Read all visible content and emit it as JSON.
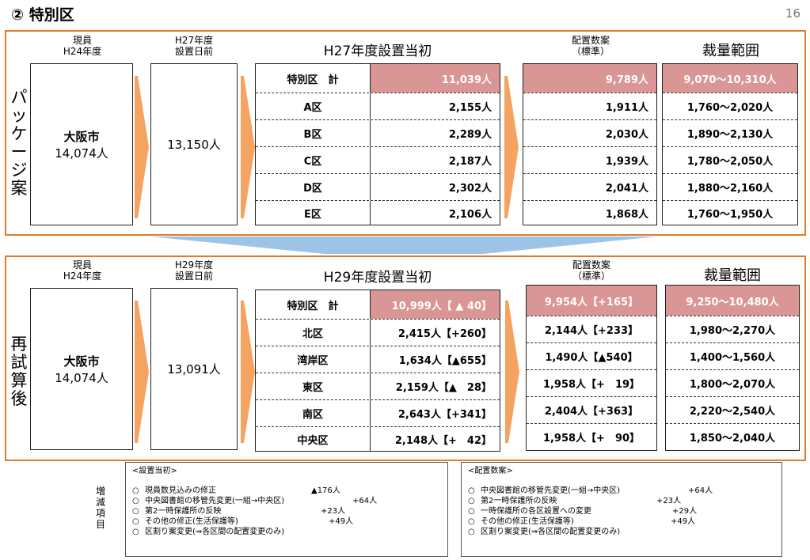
{
  "page": {
    "title": "② 特別区",
    "page_number": "16"
  },
  "package": {
    "side_label": "パッケージ案",
    "col_current": "現員\nH24年度",
    "col_current_l1": "現員",
    "col_current_l2": "H24年度",
    "col_pre_l1": "H27年度",
    "col_pre_l2": "設置日前",
    "head_setup": "H27年度設置当初",
    "head_alloc_l1": "配置数案",
    "head_alloc_l2": "（標準）",
    "head_range": "裁量範囲",
    "city_name": "大阪市",
    "city_count": "14,074人",
    "pre_count": "13,150人",
    "rows": [
      {
        "name": "特別区　計",
        "setup": "11,039人",
        "alloc": "9,789人",
        "range": "9,070〜10,310人"
      },
      {
        "name": "A区",
        "setup": "2,155人",
        "alloc": "1,911人",
        "range": "1,760〜2,020人"
      },
      {
        "name": "B区",
        "setup": "2,289人",
        "alloc": "2,030人",
        "range": "1,890〜2,130人"
      },
      {
        "name": "C区",
        "setup": "2,187人",
        "alloc": "1,939人",
        "range": "1,780〜2,050人"
      },
      {
        "name": "D区",
        "setup": "2,302人",
        "alloc": "2,041人",
        "range": "1,880〜2,160人"
      },
      {
        "name": "E区",
        "setup": "2,106人",
        "alloc": "1,868人",
        "range": "1,760〜1,950人"
      }
    ]
  },
  "recalc": {
    "side_label": "再試算後",
    "col_current_l1": "現員",
    "col_current_l2": "H24年度",
    "col_pre_l1": "H29年度",
    "col_pre_l2": "設置日前",
    "head_setup": "H29年度設置当初",
    "head_alloc_l1": "配置数案",
    "head_alloc_l2": "（標準）",
    "head_range": "裁量範囲",
    "city_name": "大阪市",
    "city_count": "14,074人",
    "pre_count": "13,091人",
    "rows": [
      {
        "name": "特別区　計",
        "setup": "10,999人【 ▲ 40】",
        "alloc": "9,954人【+165】",
        "range": "9,250〜10,480人"
      },
      {
        "name": "北区",
        "setup": "2,415人【+260】",
        "alloc": "2,144人【+233】",
        "range": "1,980〜2,270人"
      },
      {
        "name": "湾岸区",
        "setup": "1,634人【▲655】",
        "alloc": "1,490人【▲540】",
        "range": "1,400〜1,560人"
      },
      {
        "name": "東区",
        "setup": "2,159人【▲　28】",
        "alloc": "1,958人【+　19】",
        "range": "1,800〜2,070人"
      },
      {
        "name": "南区",
        "setup": "2,643人【+341】",
        "alloc": "2,404人【+363】",
        "range": "2,220〜2,540人"
      },
      {
        "name": "中央区",
        "setup": "2,148人【+　42】",
        "alloc": "1,958人【+　90】",
        "range": "1,850〜2,040人"
      }
    ]
  },
  "notes": {
    "side_label": "増減項目",
    "setup": {
      "heading": "<設置当初>",
      "items": [
        {
          "mark": "○",
          "text": "現員数見込みの修正",
          "amount": "▲176人"
        },
        {
          "mark": "○",
          "text": "中央図書館の移管先変更(一組→中央区)",
          "amount": "+64人"
        },
        {
          "mark": "○",
          "text": "第2一時保護所の反映",
          "amount": "+23人"
        },
        {
          "mark": "○",
          "text": "その他の修正(生活保護等)",
          "amount": "+49人"
        },
        {
          "mark": "○",
          "text": "区割り案変更(⇒各区間の配置変更のみ)",
          "amount": ""
        }
      ]
    },
    "alloc": {
      "heading": "<配置数案>",
      "items": [
        {
          "mark": "○",
          "text": "中央図書館の移管先変更(一組→中央区)",
          "amount": "+64人"
        },
        {
          "mark": "○",
          "text": "第2一時保護所の反映",
          "amount": "+23人"
        },
        {
          "mark": "○",
          "text": "一時保護所の各区設置への変更",
          "amount": "+29人"
        },
        {
          "mark": "○",
          "text": "その他の修正(生活保護等)",
          "amount": "+49人"
        },
        {
          "mark": "○",
          "text": "区割り案変更(⇒各区間の配置変更のみ)",
          "amount": ""
        }
      ]
    }
  },
  "colors": {
    "frame": "#e07b2a",
    "arrow": "#f4a460",
    "pink": "#d99694",
    "band": "#9dc3e6"
  }
}
